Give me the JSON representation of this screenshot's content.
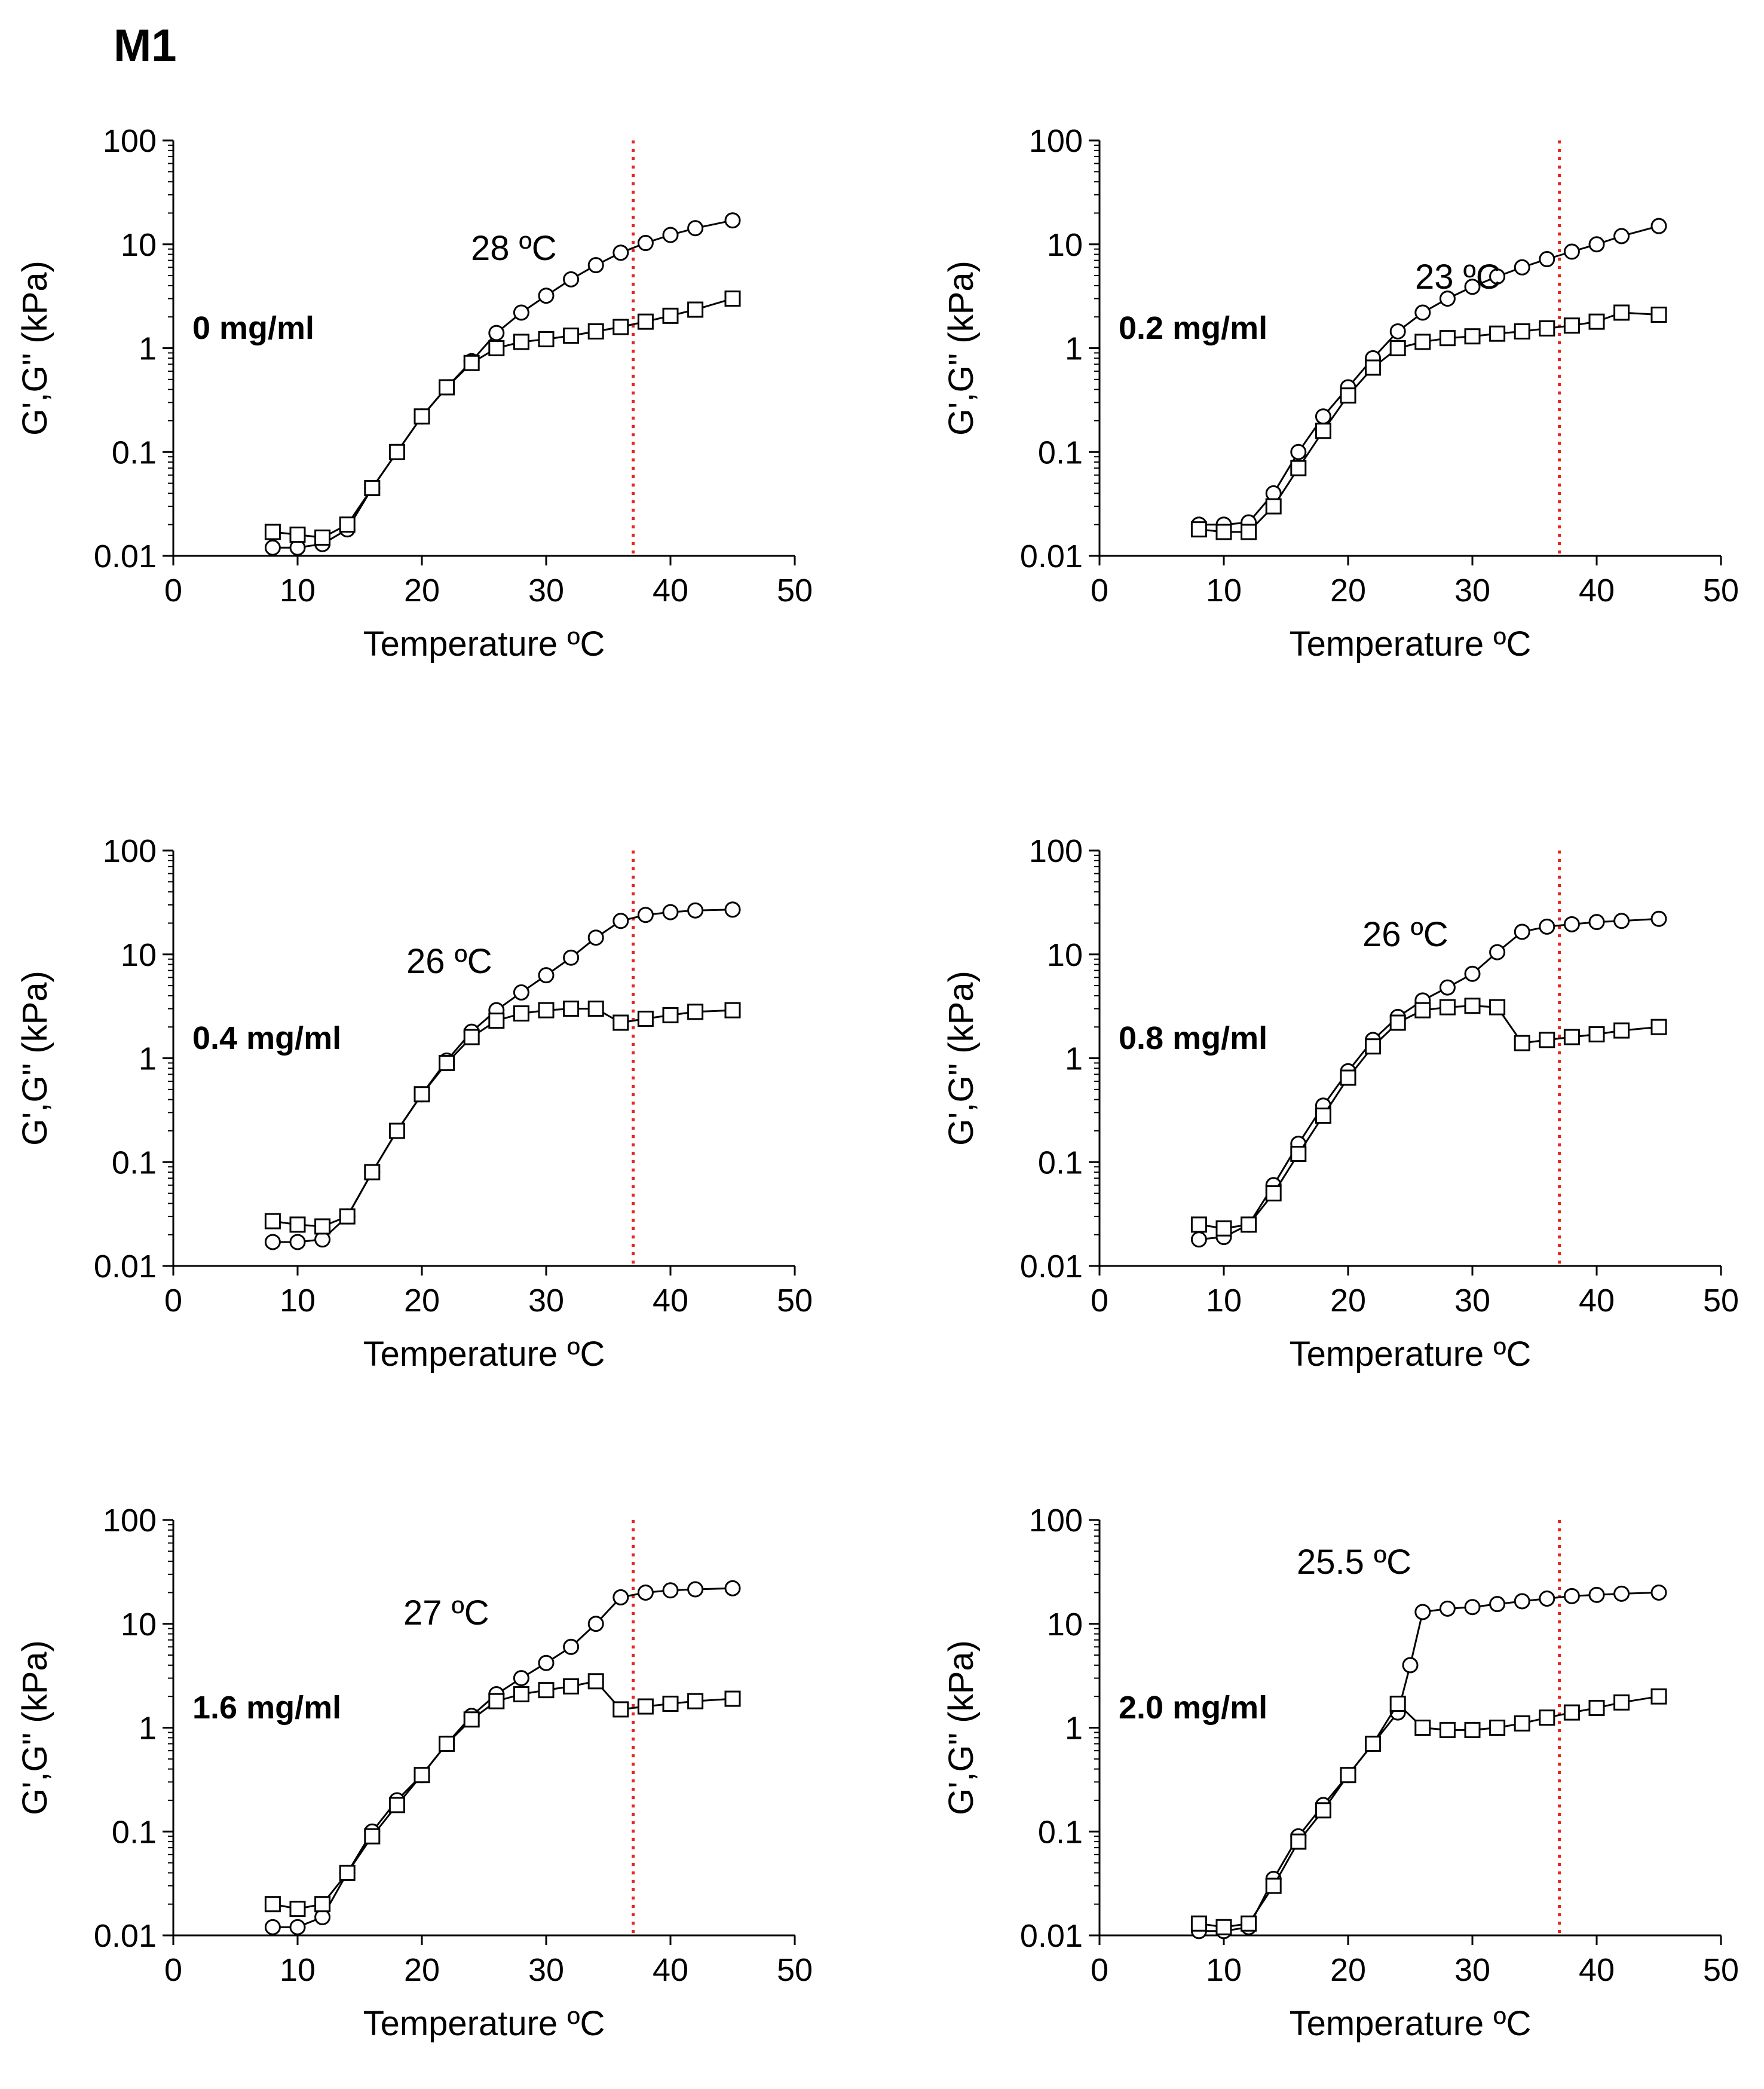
{
  "figure_label": "M1",
  "chart_data": [
    {
      "type": "line",
      "panel_label": "0 mg/ml",
      "annotation": "28 ºC",
      "xlabel": "Temperature ºC",
      "ylabel": "G',G\" (kPa)",
      "xlim": [
        0,
        50
      ],
      "ylim": [
        0.01,
        100
      ],
      "yscale": "log",
      "xticks": [
        "0",
        "10",
        "20",
        "30",
        "40",
        "50"
      ],
      "yticks": [
        "0.01",
        "0.1",
        "1",
        "10",
        "100"
      ],
      "ref_line_x": 37,
      "ref_line_color": "#e8241f",
      "series": [
        {
          "name": "G'",
          "marker": "circle",
          "x": [
            8,
            10,
            12,
            14,
            16,
            18,
            20,
            22,
            24,
            26,
            28,
            30,
            32,
            34,
            36,
            38,
            40,
            42,
            45
          ],
          "y": [
            0.012,
            0.012,
            0.013,
            0.018,
            0.045,
            0.1,
            0.22,
            0.42,
            0.75,
            1.4,
            2.2,
            3.2,
            4.6,
            6.3,
            8.3,
            10.3,
            12.3,
            14.3,
            17
          ]
        },
        {
          "name": "G\"",
          "marker": "square",
          "x": [
            8,
            10,
            12,
            14,
            16,
            18,
            20,
            22,
            24,
            26,
            28,
            30,
            32,
            34,
            36,
            38,
            40,
            42,
            45
          ],
          "y": [
            0.017,
            0.016,
            0.015,
            0.02,
            0.045,
            0.1,
            0.22,
            0.42,
            0.72,
            1.0,
            1.15,
            1.22,
            1.32,
            1.45,
            1.6,
            1.8,
            2.05,
            2.35,
            3.0
          ]
        }
      ]
    },
    {
      "type": "line",
      "panel_label": "0.2 mg/ml",
      "annotation": "23 ºC",
      "xlabel": "Temperature ºC",
      "ylabel": "G',G\" (kPa)",
      "xlim": [
        0,
        50
      ],
      "ylim": [
        0.01,
        100
      ],
      "yscale": "log",
      "xticks": [
        "0",
        "10",
        "20",
        "30",
        "40",
        "50"
      ],
      "yticks": [
        "0.01",
        "0.1",
        "1",
        "10",
        "100"
      ],
      "ref_line_x": 37,
      "ref_line_color": "#e8241f",
      "series": [
        {
          "name": "G'",
          "marker": "circle",
          "x": [
            8,
            10,
            12,
            14,
            16,
            18,
            20,
            22,
            24,
            26,
            28,
            30,
            32,
            34,
            36,
            38,
            40,
            42,
            45
          ],
          "y": [
            0.02,
            0.02,
            0.021,
            0.04,
            0.1,
            0.22,
            0.42,
            0.8,
            1.45,
            2.2,
            3.0,
            3.9,
            4.9,
            6.0,
            7.2,
            8.5,
            10.0,
            12.0,
            15.0
          ]
        },
        {
          "name": "G\"",
          "marker": "square",
          "x": [
            8,
            10,
            12,
            14,
            16,
            18,
            20,
            22,
            24,
            26,
            28,
            30,
            32,
            34,
            36,
            38,
            40,
            42,
            45
          ],
          "y": [
            0.018,
            0.017,
            0.017,
            0.03,
            0.07,
            0.16,
            0.35,
            0.65,
            1.0,
            1.15,
            1.25,
            1.3,
            1.38,
            1.45,
            1.55,
            1.65,
            1.8,
            2.2,
            2.1
          ]
        }
      ]
    },
    {
      "type": "line",
      "panel_label": "0.4 mg/ml",
      "annotation": "26 ºC",
      "xlabel": "Temperature ºC",
      "ylabel": "G',G\" (kPa)",
      "xlim": [
        0,
        50
      ],
      "ylim": [
        0.01,
        100
      ],
      "yscale": "log",
      "xticks": [
        "0",
        "10",
        "20",
        "30",
        "40",
        "50"
      ],
      "yticks": [
        "0.01",
        "0.1",
        "1",
        "10",
        "100"
      ],
      "ref_line_x": 37,
      "ref_line_color": "#e8241f",
      "series": [
        {
          "name": "G'",
          "marker": "circle",
          "x": [
            8,
            10,
            12,
            14,
            16,
            18,
            20,
            22,
            24,
            26,
            28,
            30,
            32,
            34,
            36,
            38,
            40,
            42,
            45
          ],
          "y": [
            0.017,
            0.017,
            0.018,
            0.03,
            0.08,
            0.2,
            0.45,
            0.95,
            1.8,
            2.9,
            4.3,
            6.3,
            9.3,
            14.5,
            21.0,
            24.0,
            25.5,
            26.5,
            27.0
          ]
        },
        {
          "name": "G\"",
          "marker": "square",
          "x": [
            8,
            10,
            12,
            14,
            16,
            18,
            20,
            22,
            24,
            26,
            28,
            30,
            32,
            34,
            36,
            38,
            40,
            42,
            45
          ],
          "y": [
            0.027,
            0.025,
            0.024,
            0.03,
            0.08,
            0.2,
            0.45,
            0.9,
            1.6,
            2.3,
            2.7,
            2.9,
            3.0,
            3.0,
            2.2,
            2.4,
            2.6,
            2.8,
            2.9
          ]
        }
      ]
    },
    {
      "type": "line",
      "panel_label": "0.8 mg/ml",
      "annotation": "26 ºC",
      "xlabel": "Temperature ºC",
      "ylabel": "G',G\" (kPa)",
      "xlim": [
        0,
        50
      ],
      "ylim": [
        0.01,
        100
      ],
      "yscale": "log",
      "xticks": [
        "0",
        "10",
        "20",
        "30",
        "40",
        "50"
      ],
      "yticks": [
        "0.01",
        "0.1",
        "1",
        "10",
        "100"
      ],
      "ref_line_x": 37,
      "ref_line_color": "#e8241f",
      "series": [
        {
          "name": "G'",
          "marker": "circle",
          "x": [
            8,
            10,
            12,
            14,
            16,
            18,
            20,
            22,
            24,
            26,
            28,
            30,
            32,
            34,
            36,
            38,
            40,
            42,
            45
          ],
          "y": [
            0.018,
            0.019,
            0.025,
            0.06,
            0.15,
            0.35,
            0.75,
            1.5,
            2.5,
            3.6,
            4.8,
            6.5,
            10.5,
            16.5,
            18.5,
            19.5,
            20.5,
            21.0,
            22.0
          ]
        },
        {
          "name": "G\"",
          "marker": "square",
          "x": [
            8,
            10,
            12,
            14,
            16,
            18,
            20,
            22,
            24,
            26,
            28,
            30,
            32,
            34,
            36,
            38,
            40,
            42,
            45
          ],
          "y": [
            0.025,
            0.023,
            0.025,
            0.05,
            0.12,
            0.28,
            0.65,
            1.3,
            2.2,
            2.9,
            3.1,
            3.2,
            3.1,
            1.4,
            1.5,
            1.6,
            1.7,
            1.85,
            2.0
          ]
        }
      ]
    },
    {
      "type": "line",
      "panel_label": "1.6 mg/ml",
      "annotation": "27 ºC",
      "xlabel": "Temperature ºC",
      "ylabel": "G',G\" (kPa)",
      "xlim": [
        0,
        50
      ],
      "ylim": [
        0.01,
        100
      ],
      "yscale": "log",
      "xticks": [
        "0",
        "10",
        "20",
        "30",
        "40",
        "50"
      ],
      "yticks": [
        "0.01",
        "0.1",
        "1",
        "10",
        "100"
      ],
      "ref_line_x": 37,
      "ref_line_color": "#e8241f",
      "series": [
        {
          "name": "G'",
          "marker": "circle",
          "x": [
            8,
            10,
            12,
            14,
            16,
            18,
            20,
            22,
            24,
            26,
            28,
            30,
            32,
            34,
            36,
            38,
            40,
            42,
            45
          ],
          "y": [
            0.012,
            0.012,
            0.015,
            0.04,
            0.1,
            0.2,
            0.35,
            0.7,
            1.3,
            2.1,
            3.0,
            4.2,
            6.0,
            10.0,
            18.0,
            20.0,
            21.0,
            21.5,
            22.0
          ]
        },
        {
          "name": "G\"",
          "marker": "square",
          "x": [
            8,
            10,
            12,
            14,
            16,
            18,
            20,
            22,
            24,
            26,
            28,
            30,
            32,
            34,
            36,
            38,
            40,
            42,
            45
          ],
          "y": [
            0.02,
            0.018,
            0.02,
            0.04,
            0.09,
            0.18,
            0.35,
            0.7,
            1.2,
            1.8,
            2.1,
            2.3,
            2.5,
            2.8,
            1.5,
            1.6,
            1.7,
            1.8,
            1.9
          ]
        }
      ]
    },
    {
      "type": "line",
      "panel_label": "2.0 mg/ml",
      "annotation": "25.5 ºC",
      "xlabel": "Temperature ºC",
      "ylabel": "G',G\" (kPa)",
      "xlim": [
        0,
        50
      ],
      "ylim": [
        0.01,
        100
      ],
      "yscale": "log",
      "xticks": [
        "0",
        "10",
        "20",
        "30",
        "40",
        "50"
      ],
      "yticks": [
        "0.01",
        "0.1",
        "1",
        "10",
        "100"
      ],
      "ref_line_x": 37,
      "ref_line_color": "#e8241f",
      "series": [
        {
          "name": "G'",
          "marker": "circle",
          "x": [
            8,
            10,
            12,
            14,
            16,
            18,
            20,
            22,
            24,
            25,
            26,
            28,
            30,
            32,
            34,
            36,
            38,
            40,
            42,
            45
          ],
          "y": [
            0.011,
            0.011,
            0.012,
            0.035,
            0.09,
            0.18,
            0.35,
            0.7,
            1.4,
            4.0,
            13.0,
            14.0,
            14.5,
            15.5,
            16.5,
            17.5,
            18.5,
            19.0,
            19.5,
            20.0
          ]
        },
        {
          "name": "G\"",
          "marker": "square",
          "x": [
            8,
            10,
            12,
            14,
            16,
            18,
            20,
            22,
            24,
            26,
            28,
            30,
            32,
            34,
            36,
            38,
            40,
            42,
            45
          ],
          "y": [
            0.013,
            0.012,
            0.013,
            0.03,
            0.08,
            0.16,
            0.35,
            0.7,
            1.7,
            1.0,
            0.95,
            0.95,
            1.0,
            1.1,
            1.25,
            1.4,
            1.55,
            1.75,
            2.0
          ]
        }
      ]
    }
  ]
}
